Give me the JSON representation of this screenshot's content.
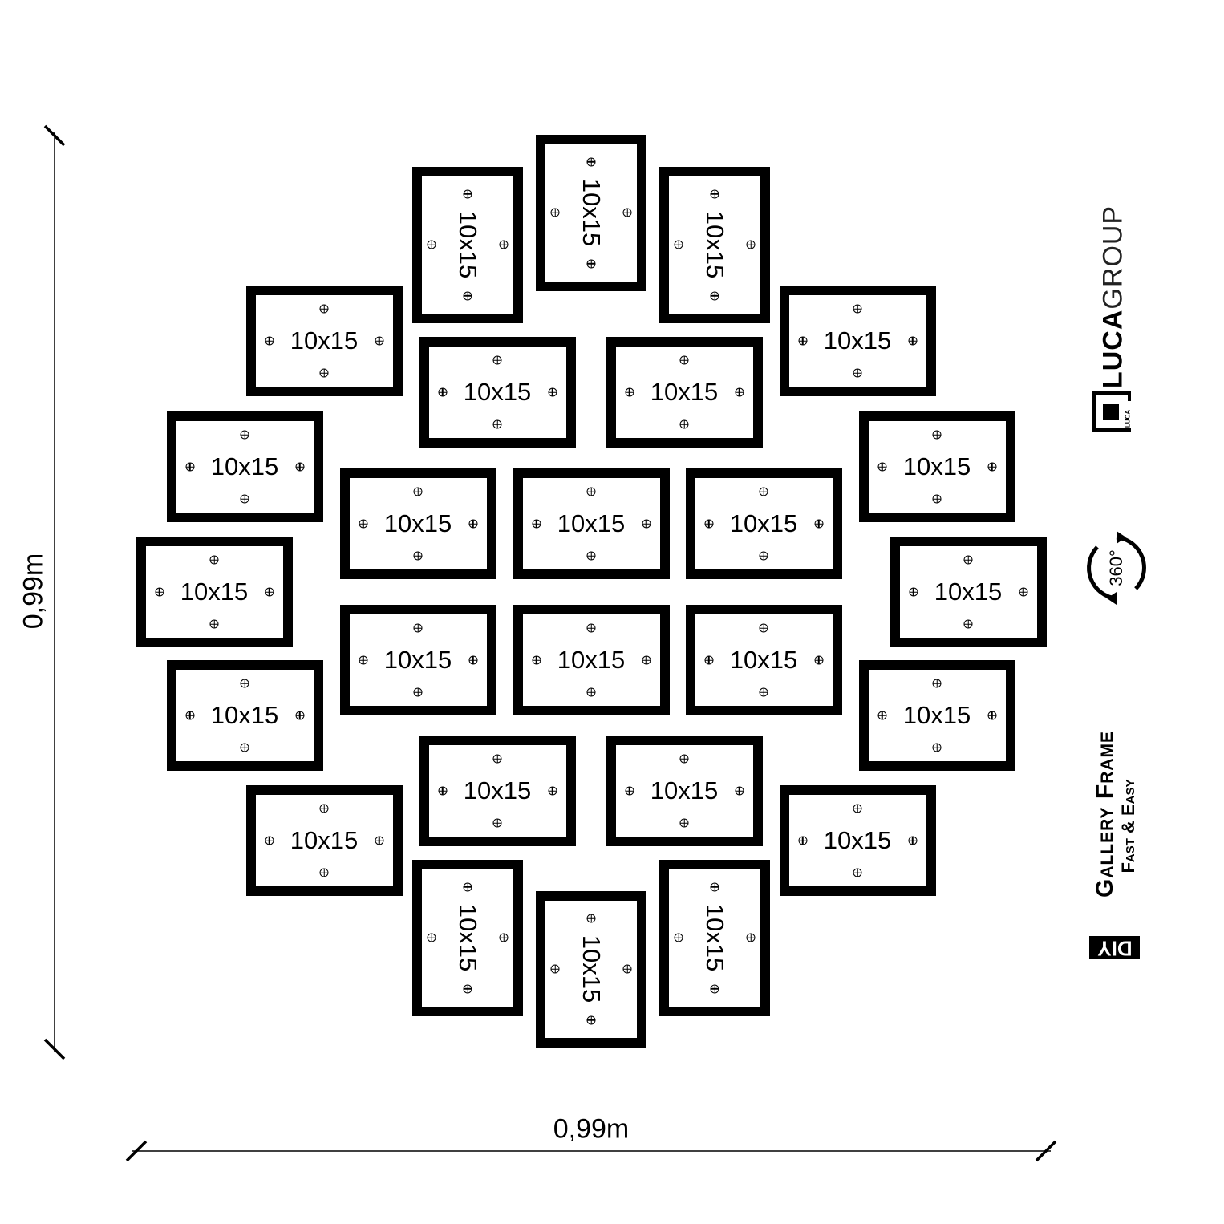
{
  "dimensions": {
    "height_label": "0,99m",
    "width_label": "0,99m"
  },
  "frames": [
    {
      "label": "10x15",
      "orientation": "portrait"
    },
    {
      "label": "10x15",
      "orientation": "portrait"
    },
    {
      "label": "10x15",
      "orientation": "portrait"
    },
    {
      "label": "10x15",
      "orientation": "landscape"
    },
    {
      "label": "10x15",
      "orientation": "landscape"
    },
    {
      "label": "10x15",
      "orientation": "landscape"
    },
    {
      "label": "10x15",
      "orientation": "landscape"
    },
    {
      "label": "10x15",
      "orientation": "landscape"
    },
    {
      "label": "10x15",
      "orientation": "landscape"
    },
    {
      "label": "10x15",
      "orientation": "landscape"
    },
    {
      "label": "10x15",
      "orientation": "landscape"
    },
    {
      "label": "10x15",
      "orientation": "landscape"
    },
    {
      "label": "10x15",
      "orientation": "landscape"
    },
    {
      "label": "10x15",
      "orientation": "landscape"
    },
    {
      "label": "10x15",
      "orientation": "landscape"
    },
    {
      "label": "10x15",
      "orientation": "landscape"
    },
    {
      "label": "10x15",
      "orientation": "landscape"
    },
    {
      "label": "10x15",
      "orientation": "landscape"
    },
    {
      "label": "10x15",
      "orientation": "landscape"
    },
    {
      "label": "10x15",
      "orientation": "landscape"
    },
    {
      "label": "10x15",
      "orientation": "landscape"
    },
    {
      "label": "10x15",
      "orientation": "landscape"
    },
    {
      "label": "10x15",
      "orientation": "landscape"
    },
    {
      "label": "10x15",
      "orientation": "portrait"
    },
    {
      "label": "10x15",
      "orientation": "portrait"
    },
    {
      "label": "10x15",
      "orientation": "portrait"
    }
  ],
  "brand": {
    "logo_bold": "LUCA",
    "logo_light": "GROUP",
    "logo_mark": "LUCA"
  },
  "rotation_badge": {
    "label": "360°",
    "icon": "rotate-360-icon"
  },
  "product": {
    "badge": "DIY",
    "title": "Gallery Frame",
    "subtitle": "Fast & Easy"
  }
}
